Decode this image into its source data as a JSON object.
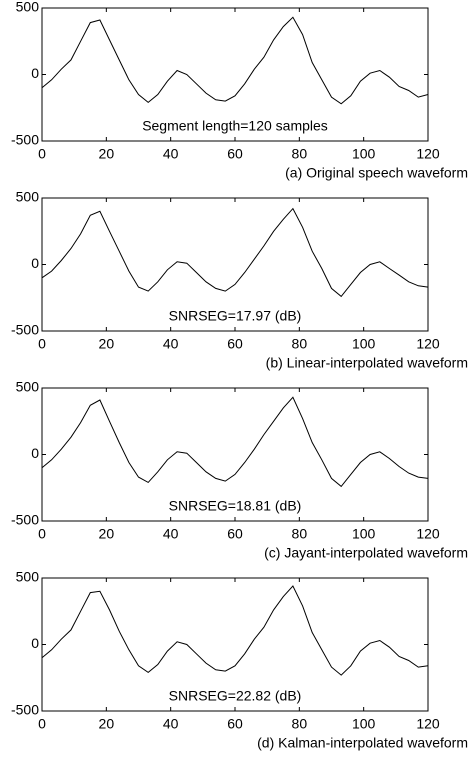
{
  "chart_data": [
    {
      "type": "line",
      "annotation": "Segment length=120 samples",
      "caption": "(a) Original speech waveform",
      "color": "#000000",
      "x": [
        0,
        3,
        6,
        9,
        12,
        15,
        18,
        21,
        24,
        27,
        30,
        33,
        36,
        39,
        42,
        45,
        48,
        51,
        54,
        57,
        60,
        63,
        66,
        69,
        72,
        75,
        78,
        81,
        84,
        87,
        90,
        93,
        96,
        99,
        102,
        105,
        108,
        111,
        114,
        117,
        120
      ],
      "values": [
        -100,
        -40,
        40,
        110,
        250,
        390,
        410,
        260,
        110,
        -40,
        -150,
        -210,
        -150,
        -50,
        30,
        0,
        -70,
        -140,
        -190,
        -200,
        -160,
        -70,
        40,
        130,
        260,
        360,
        430,
        300,
        90,
        -40,
        -170,
        -220,
        -160,
        -50,
        10,
        30,
        -20,
        -90,
        -120,
        -170,
        -150
      ],
      "xlim": [
        0,
        120
      ],
      "ylim": [
        -500,
        500
      ],
      "xticks": [
        0,
        20,
        40,
        60,
        80,
        100,
        120
      ],
      "yticks": [
        -500,
        0,
        500
      ]
    },
    {
      "type": "line",
      "annotation": "SNRSEG=17.97 (dB)",
      "caption": "(b) Linear-interpolated waveform",
      "color": "#000000",
      "x": [
        0,
        3,
        6,
        9,
        12,
        15,
        18,
        21,
        24,
        27,
        30,
        33,
        36,
        39,
        42,
        45,
        48,
        51,
        54,
        57,
        60,
        63,
        66,
        69,
        72,
        75,
        78,
        81,
        84,
        87,
        90,
        93,
        96,
        99,
        102,
        105,
        108,
        111,
        114,
        117,
        120
      ],
      "values": [
        -100,
        -50,
        30,
        120,
        230,
        370,
        400,
        250,
        100,
        -50,
        -170,
        -200,
        -130,
        -40,
        20,
        10,
        -60,
        -130,
        -180,
        -200,
        -150,
        -60,
        40,
        140,
        250,
        340,
        420,
        280,
        100,
        -30,
        -180,
        -240,
        -150,
        -60,
        0,
        20,
        -30,
        -80,
        -130,
        -160,
        -170
      ],
      "xlim": [
        0,
        120
      ],
      "ylim": [
        -500,
        500
      ],
      "xticks": [
        0,
        20,
        40,
        60,
        80,
        100,
        120
      ],
      "yticks": [
        -500,
        0,
        500
      ]
    },
    {
      "type": "line",
      "annotation": "SNRSEG=18.81 (dB)",
      "caption": "(c) Jayant-interpolated waveform",
      "color": "#000000",
      "x": [
        0,
        3,
        6,
        9,
        12,
        15,
        18,
        21,
        24,
        27,
        30,
        33,
        36,
        39,
        42,
        45,
        48,
        51,
        54,
        57,
        60,
        63,
        66,
        69,
        72,
        75,
        78,
        81,
        84,
        87,
        90,
        93,
        96,
        99,
        102,
        105,
        108,
        111,
        114,
        117,
        120
      ],
      "values": [
        -100,
        -40,
        40,
        130,
        240,
        370,
        410,
        250,
        90,
        -60,
        -170,
        -210,
        -130,
        -40,
        20,
        10,
        -60,
        -130,
        -180,
        -200,
        -150,
        -60,
        40,
        150,
        250,
        350,
        430,
        270,
        90,
        -40,
        -180,
        -240,
        -150,
        -60,
        0,
        20,
        -30,
        -90,
        -140,
        -170,
        -180
      ],
      "xlim": [
        0,
        120
      ],
      "ylim": [
        -500,
        500
      ],
      "xticks": [
        0,
        20,
        40,
        60,
        80,
        100,
        120
      ],
      "yticks": [
        -500,
        0,
        500
      ]
    },
    {
      "type": "line",
      "annotation": "SNRSEG=22.82 (dB)",
      "caption": "(d) Kalman-interpolated waveform",
      "color": "#000000",
      "x": [
        0,
        3,
        6,
        9,
        12,
        15,
        18,
        21,
        24,
        27,
        30,
        33,
        36,
        39,
        42,
        45,
        48,
        51,
        54,
        57,
        60,
        63,
        66,
        69,
        72,
        75,
        78,
        81,
        84,
        87,
        90,
        93,
        96,
        99,
        102,
        105,
        108,
        111,
        114,
        117,
        120
      ],
      "values": [
        -100,
        -40,
        40,
        110,
        250,
        390,
        400,
        260,
        100,
        -40,
        -160,
        -210,
        -150,
        -50,
        20,
        0,
        -70,
        -140,
        -190,
        -200,
        -160,
        -70,
        40,
        130,
        260,
        360,
        440,
        290,
        90,
        -40,
        -170,
        -230,
        -160,
        -50,
        10,
        30,
        -20,
        -90,
        -120,
        -170,
        -160
      ],
      "xlim": [
        0,
        120
      ],
      "ylim": [
        -500,
        500
      ],
      "xticks": [
        0,
        20,
        40,
        60,
        80,
        100,
        120
      ],
      "yticks": [
        -500,
        0,
        500
      ]
    }
  ]
}
